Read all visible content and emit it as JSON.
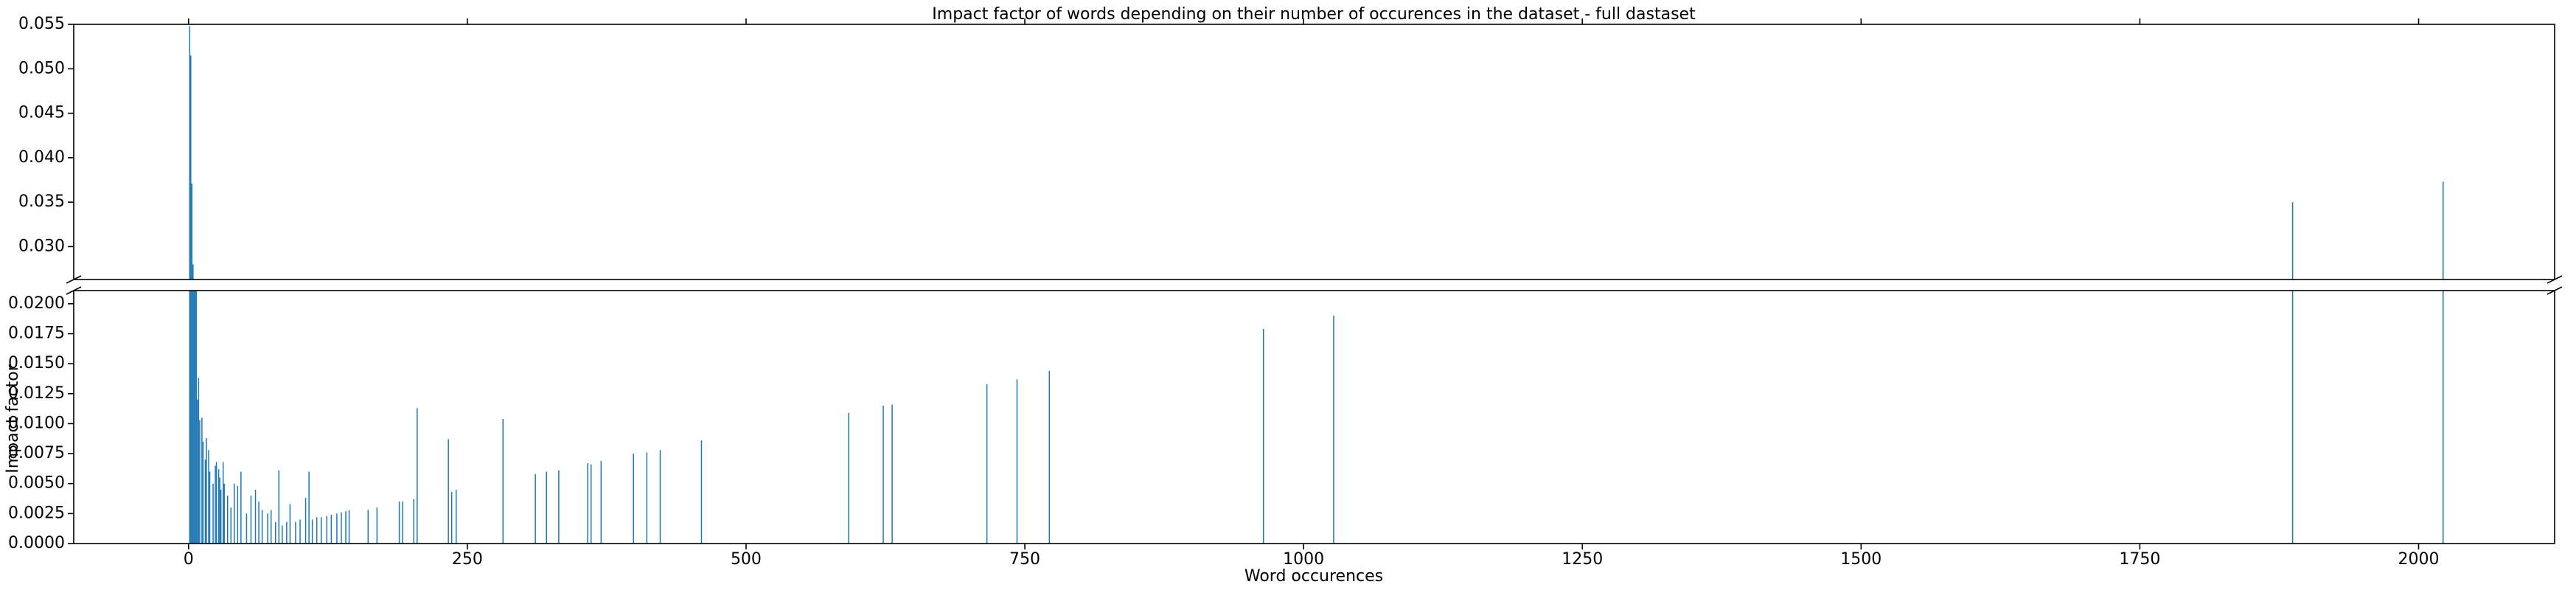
{
  "chart_data": {
    "type": "bar",
    "broken_axis": true,
    "title": "Impact factor of words depending on their number of occurences in the dataset - full dastaset",
    "x_label": "Word occurences",
    "y_label": "Impact factor",
    "color": "#1f77b4",
    "xlim": [
      -103,
      2122
    ],
    "xticks": [
      0,
      250,
      500,
      750,
      1000,
      1250,
      1500,
      1750,
      2000
    ],
    "ylim": [
      0,
      0.0211
    ],
    "yticks": [
      {
        "value": 0,
        "label": "0.0000"
      },
      {
        "value": 0.0025,
        "label": "0.0025"
      },
      {
        "value": 0.005,
        "label": "0.0050"
      },
      {
        "value": 0.0075,
        "label": "0.0075"
      },
      {
        "value": 0.01,
        "label": "0.0100"
      },
      {
        "value": 0.0125,
        "label": "0.0125"
      },
      {
        "value": 0.015,
        "label": "0.0150"
      },
      {
        "value": 0.0175,
        "label": "0.0175"
      },
      {
        "value": 0.02,
        "label": "0.0200"
      }
    ],
    "y2lim": [
      0.0263,
      0.055
    ],
    "y2ticks": [
      {
        "value": 0.03,
        "label": "0.030"
      },
      {
        "value": 0.035,
        "label": "0.035"
      },
      {
        "value": 0.04,
        "label": "0.040"
      },
      {
        "value": 0.045,
        "label": "0.045"
      },
      {
        "value": 0.05,
        "label": "0.050"
      },
      {
        "value": 0.055,
        "label": "0.055"
      }
    ],
    "x": [
      1,
      2,
      3,
      4,
      5,
      6,
      7,
      8,
      9,
      10,
      12,
      13,
      15,
      16,
      18,
      19,
      22,
      24,
      25,
      27,
      28,
      29,
      31,
      32,
      35,
      38,
      41,
      44,
      47,
      52,
      56,
      60,
      63,
      66,
      71,
      74,
      78,
      81,
      84,
      88,
      91,
      96,
      100,
      105,
      108,
      111,
      115,
      119,
      124,
      128,
      133,
      137,
      141,
      144,
      161,
      169,
      189,
      192,
      202,
      205,
      233,
      236,
      240,
      282,
      311,
      321,
      332,
      358,
      361,
      370,
      399,
      411,
      423,
      460,
      592,
      623,
      631,
      716,
      743,
      772,
      964,
      1027,
      1887,
      2022
    ],
    "values": [
      0.0548,
      0.0515,
      0.0371,
      0.028,
      0.0215,
      0.0215,
      0.0215,
      0.012,
      0.0138,
      0.0103,
      0.0105,
      0.0085,
      0.007,
      0.0088,
      0.0078,
      0.006,
      0.005,
      0.0065,
      0.0068,
      0.0062,
      0.0055,
      0.0045,
      0.0068,
      0.005,
      0.004,
      0.003,
      0.005,
      0.0048,
      0.006,
      0.0025,
      0.004,
      0.0045,
      0.0035,
      0.0028,
      0.0025,
      0.0028,
      0.0018,
      0.0061,
      0.0015,
      0.0018,
      0.0033,
      0.0018,
      0.002,
      0.0038,
      0.006,
      0.002,
      0.0022,
      0.0022,
      0.0023,
      0.0024,
      0.0025,
      0.0026,
      0.0027,
      0.0028,
      0.0028,
      0.003,
      0.0035,
      0.0035,
      0.0037,
      0.0113,
      0.0087,
      0.0043,
      0.0045,
      0.0104,
      0.0058,
      0.006,
      0.0061,
      0.0067,
      0.0066,
      0.0069,
      0.0075,
      0.0076,
      0.0078,
      0.0086,
      0.0109,
      0.0115,
      0.0116,
      0.0133,
      0.0137,
      0.0144,
      0.0179,
      0.019,
      0.035,
      0.0373
    ]
  }
}
